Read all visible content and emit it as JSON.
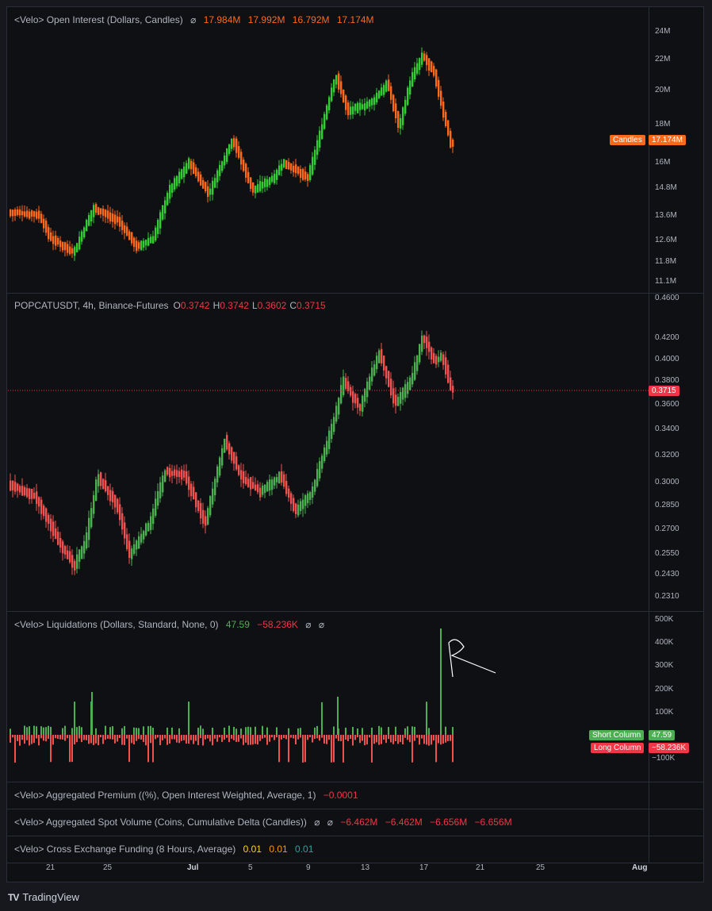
{
  "colors": {
    "up": "#4caf50",
    "up_bright": "#33cc33",
    "down": "#f23645",
    "down_soft": "#ef5350",
    "orange": "#ff6a1a",
    "bg": "#0e1014"
  },
  "oi": {
    "title": "<Velo> Open Interest (Dollars, Candles)",
    "eye_icon": "⌀",
    "values": [
      "17.984M",
      "17.992M",
      "16.792M",
      "17.174M"
    ],
    "ticks": [
      "24M",
      "22M",
      "20M",
      "18M",
      "16M",
      "14.8M",
      "13.6M",
      "12.6M",
      "11.8M",
      "11.1M"
    ],
    "badge_label": "Candles",
    "badge_value": "17.174M"
  },
  "price": {
    "symbol": "POPCATUSDT, 4h, Binance-Futures",
    "o_label": "O",
    "o": "0.3742",
    "h_label": "H",
    "h": "0.3742",
    "l_label": "L",
    "l": "0.3602",
    "c_label": "C",
    "c": "0.3715",
    "ticks": [
      "0.4600",
      "0.4200",
      "0.4000",
      "0.3800",
      "0.3600",
      "0.3400",
      "0.3200",
      "0.3000",
      "0.2850",
      "0.2700",
      "0.2550",
      "0.2430",
      "0.2310"
    ],
    "last_badge": "0.3715"
  },
  "liq": {
    "title": "<Velo> Liquidations (Dollars, Standard, None, 0)",
    "v1": "47.59",
    "v2": "−58.236K",
    "eye1": "⌀",
    "eye2": "⌀",
    "ticks": [
      "500K",
      "400K",
      "300K",
      "200K",
      "100K",
      "−100K"
    ],
    "short_label": "Short Column",
    "short_value": "47.59",
    "long_label": "Long Column",
    "long_value": "−58.236K"
  },
  "premium": {
    "title": "<Velo> Aggregated Premium ((%), Open Interest Weighted, Average, 1)",
    "value": "−0.0001"
  },
  "spot": {
    "title": "<Velo> Aggregated Spot Volume (Coins, Cumulative Delta (Candles))",
    "eye1": "⌀",
    "eye2": "⌀",
    "values": [
      "−6.462M",
      "−6.462M",
      "−6.656M",
      "−6.656M"
    ]
  },
  "funding": {
    "title": "<Velo> Cross Exchange Funding (8 Hours, Average)",
    "values": [
      "0.01",
      "0.01",
      "0.01"
    ]
  },
  "xaxis": [
    "21",
    "25",
    "Jul",
    "5",
    "9",
    "13",
    "17",
    "21",
    "25",
    "Aug"
  ],
  "brand": {
    "logo": "TV",
    "name": "TradingView"
  }
}
